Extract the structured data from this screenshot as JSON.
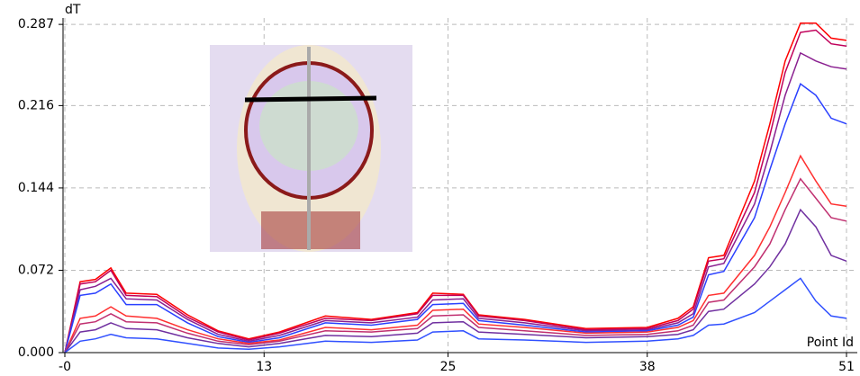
{
  "chart_data": {
    "type": "line",
    "y_label": "dT",
    "x_label": "Point Id",
    "x": [
      0,
      1,
      2,
      3,
      4,
      6,
      8,
      10,
      12,
      14,
      17,
      20,
      23,
      24,
      26,
      27,
      30,
      34,
      38,
      40,
      41,
      42,
      43,
      45,
      46,
      47,
      48,
      49,
      50,
      51
    ],
    "series": [
      {
        "color": "#ff0000",
        "values": [
          0,
          0.062,
          0.064,
          0.074,
          0.052,
          0.051,
          0.033,
          0.019,
          0.012,
          0.018,
          0.032,
          0.029,
          0.035,
          0.052,
          0.051,
          0.033,
          0.029,
          0.021,
          0.022,
          0.03,
          0.04,
          0.083,
          0.085,
          0.15,
          0.2,
          0.255,
          0.288,
          0.288,
          0.275,
          0.273
        ]
      },
      {
        "color": "#c0005a",
        "values": [
          0,
          0.06,
          0.062,
          0.072,
          0.05,
          0.049,
          0.031,
          0.018,
          0.011,
          0.017,
          0.03,
          0.028,
          0.034,
          0.05,
          0.05,
          0.032,
          0.028,
          0.02,
          0.021,
          0.028,
          0.038,
          0.08,
          0.082,
          0.14,
          0.19,
          0.245,
          0.28,
          0.282,
          0.27,
          0.268
        ]
      },
      {
        "color": "#8a2090",
        "values": [
          0,
          0.055,
          0.058,
          0.065,
          0.047,
          0.046,
          0.029,
          0.016,
          0.01,
          0.015,
          0.028,
          0.026,
          0.031,
          0.046,
          0.047,
          0.03,
          0.026,
          0.019,
          0.02,
          0.026,
          0.034,
          0.075,
          0.078,
          0.13,
          0.175,
          0.225,
          0.262,
          0.255,
          0.25,
          0.248
        ]
      },
      {
        "color": "#2a40ff",
        "values": [
          0,
          0.05,
          0.052,
          0.06,
          0.042,
          0.042,
          0.026,
          0.014,
          0.009,
          0.013,
          0.026,
          0.024,
          0.029,
          0.042,
          0.043,
          0.028,
          0.024,
          0.018,
          0.019,
          0.024,
          0.031,
          0.068,
          0.071,
          0.118,
          0.16,
          0.2,
          0.235,
          0.225,
          0.205,
          0.2
        ]
      },
      {
        "color": "#ff3030",
        "values": [
          0,
          0.03,
          0.032,
          0.04,
          0.032,
          0.03,
          0.02,
          0.012,
          0.008,
          0.011,
          0.022,
          0.02,
          0.024,
          0.037,
          0.038,
          0.025,
          0.022,
          0.017,
          0.018,
          0.022,
          0.028,
          0.05,
          0.052,
          0.085,
          0.11,
          0.14,
          0.172,
          0.15,
          0.13,
          0.128
        ]
      },
      {
        "color": "#c03070",
        "values": [
          0,
          0.025,
          0.027,
          0.034,
          0.027,
          0.026,
          0.017,
          0.01,
          0.007,
          0.01,
          0.019,
          0.018,
          0.021,
          0.032,
          0.033,
          0.022,
          0.019,
          0.015,
          0.016,
          0.019,
          0.024,
          0.044,
          0.046,
          0.075,
          0.095,
          0.125,
          0.152,
          0.135,
          0.118,
          0.115
        ]
      },
      {
        "color": "#7030a0",
        "values": [
          0,
          0.018,
          0.02,
          0.026,
          0.021,
          0.02,
          0.013,
          0.008,
          0.005,
          0.008,
          0.015,
          0.014,
          0.017,
          0.026,
          0.027,
          0.018,
          0.016,
          0.013,
          0.014,
          0.016,
          0.02,
          0.036,
          0.038,
          0.06,
          0.075,
          0.095,
          0.125,
          0.11,
          0.085,
          0.08
        ]
      },
      {
        "color": "#3050ff",
        "values": [
          0,
          0.01,
          0.012,
          0.016,
          0.013,
          0.012,
          0.008,
          0.004,
          0.003,
          0.005,
          0.01,
          0.009,
          0.011,
          0.018,
          0.019,
          0.012,
          0.011,
          0.009,
          0.01,
          0.012,
          0.015,
          0.024,
          0.025,
          0.035,
          0.045,
          0.055,
          0.065,
          0.045,
          0.032,
          0.03
        ]
      }
    ],
    "xlim": [
      0,
      51
    ],
    "xticks": [
      {
        "value": 0,
        "label": "-0"
      },
      13,
      25,
      38,
      51
    ],
    "ylim": [
      0,
      0.2926
    ],
    "yticks": [
      {
        "value": 0,
        "label": "0.000"
      },
      0.072,
      0.144,
      0.216,
      0.287
    ],
    "grid": true
  }
}
